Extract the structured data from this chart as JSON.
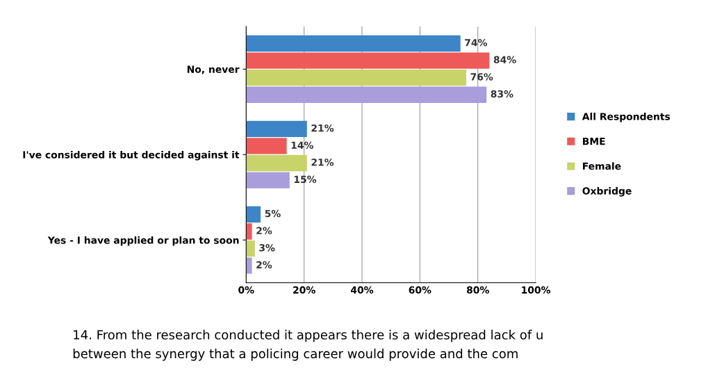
{
  "chart_data": {
    "type": "bar",
    "orientation": "horizontal",
    "categories": [
      "No, never",
      "I've considered it but decided against it",
      "Yes - I have applied or plan to soon"
    ],
    "series": [
      {
        "name": "All Respondents",
        "color": "#3d85c6",
        "values": [
          74,
          21,
          5
        ],
        "value_labels": [
          "74%",
          "21%",
          "5%"
        ]
      },
      {
        "name": "BME",
        "color": "#ee5a5a",
        "values": [
          84,
          14,
          2
        ],
        "value_labels": [
          "84%",
          "14%",
          "2%"
        ]
      },
      {
        "name": "Female",
        "color": "#c8d36a",
        "values": [
          76,
          21,
          3
        ],
        "value_labels": [
          "76%",
          "21%",
          "3%"
        ]
      },
      {
        "name": "Oxbridge",
        "color": "#a99ddc",
        "values": [
          83,
          15,
          2
        ],
        "value_labels": [
          "83%",
          "15%",
          "2%"
        ]
      }
    ],
    "xlim": [
      0,
      100
    ],
    "xticks": [
      {
        "value": 0,
        "label": "0%"
      },
      {
        "value": 20,
        "label": "20%"
      },
      {
        "value": 40,
        "label": "40%"
      },
      {
        "value": 60,
        "label": "60%"
      },
      {
        "value": 80,
        "label": "80%"
      },
      {
        "value": 100,
        "label": "100%"
      }
    ],
    "grid": "x",
    "legend": "right",
    "annotations": [
      "14. From the research conducted it appears there is a widespread lack of u",
      "between the synergy that a policing career would provide and the com"
    ]
  }
}
